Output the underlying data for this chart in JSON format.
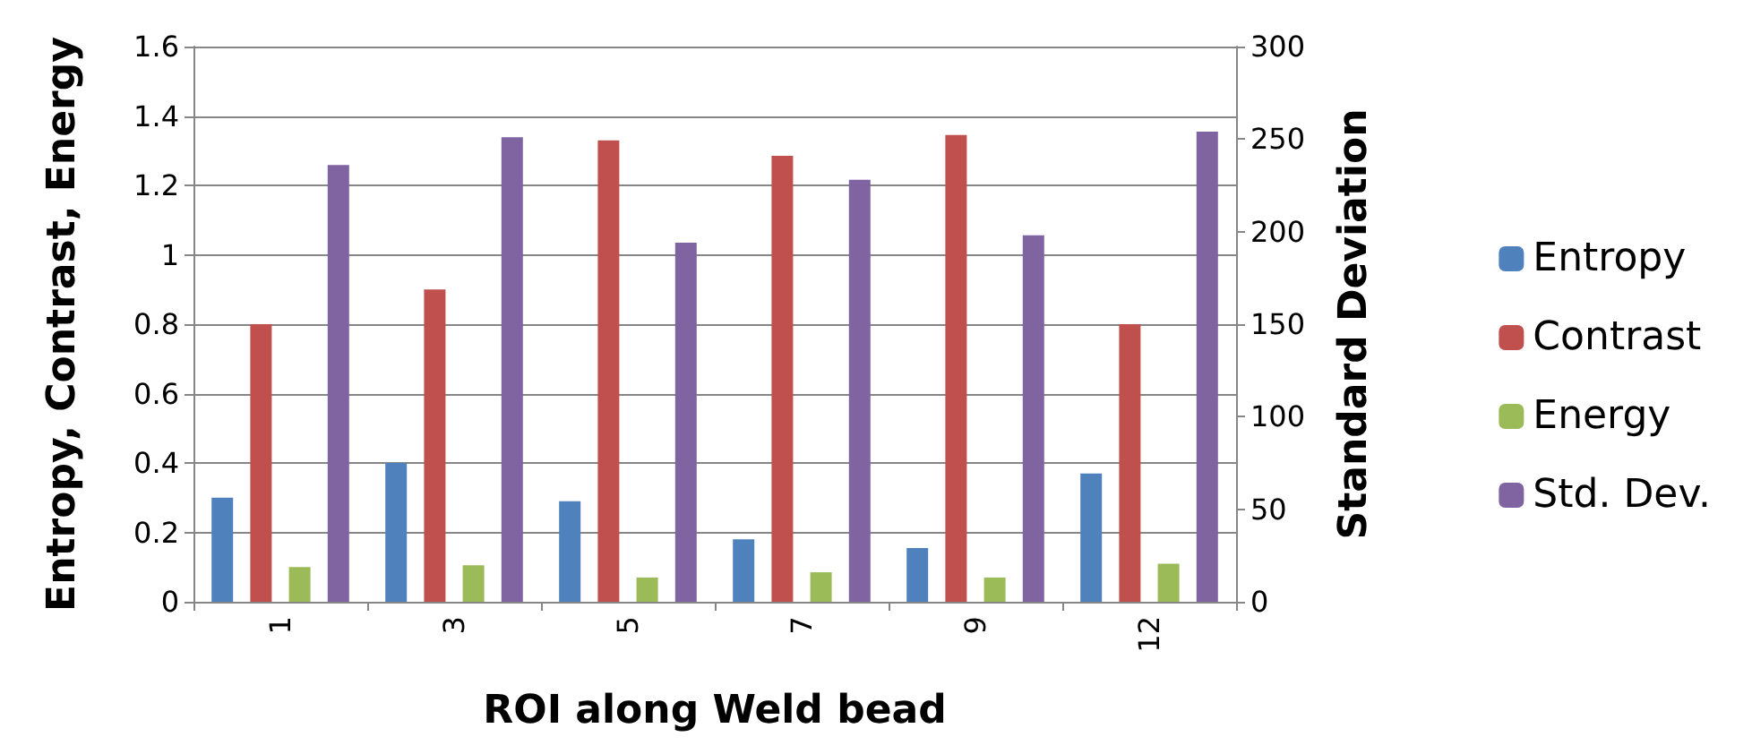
{
  "chart_data": {
    "type": "bar",
    "xlabel": "ROI along Weld bead",
    "ylabel": "Entropy, Contrast, Energy",
    "y2label": "Standard Deviation",
    "categories": [
      "1",
      "3",
      "5",
      "7",
      "9",
      "12"
    ],
    "series": [
      {
        "name": "Entropy",
        "color": "#4f81bd",
        "values": [
          0.3,
          0.4,
          0.29,
          0.18,
          0.155,
          0.37
        ]
      },
      {
        "name": "Contrast",
        "color": "#c0504d",
        "values": [
          0.8,
          0.9,
          1.33,
          1.285,
          1.345,
          0.8
        ]
      },
      {
        "name": "Energy",
        "color": "#9bbb59",
        "values": [
          0.1,
          0.105,
          0.07,
          0.085,
          0.07,
          0.11
        ]
      },
      {
        "name": "Std. Dev.",
        "color": "#8064a2",
        "axis": "y2",
        "values": [
          236,
          251,
          194,
          228,
          198,
          254
        ]
      }
    ],
    "ylim": [
      0,
      1.6
    ],
    "yticks": [
      0,
      0.2,
      0.4,
      0.6,
      0.8,
      1,
      1.2,
      1.4,
      1.6
    ],
    "y2lim": [
      0,
      300
    ],
    "y2ticks": [
      0,
      50,
      100,
      150,
      200,
      250,
      300
    ],
    "grid": "y",
    "legend": "right"
  }
}
